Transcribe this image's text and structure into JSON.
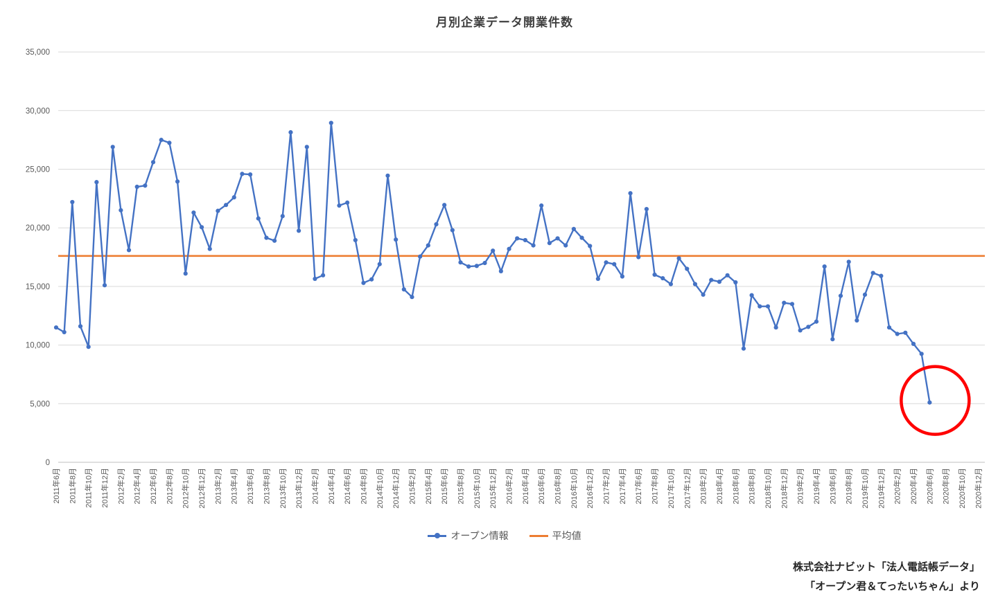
{
  "chart": {
    "title": "月別企業データ開業件数",
    "legend_items": [
      {
        "label": "オープン情報",
        "color": "#4472C4",
        "style": "line-marker"
      },
      {
        "label": "平均値",
        "color": "#ED7D31",
        "style": "line"
      }
    ],
    "source_lines": [
      "株式会社ナビット「法人電話帳データ」",
      "「オープン君＆てったいちゃん」より"
    ],
    "colors": {
      "series": "#4472C4",
      "average": "#ED7D31",
      "grid": "#D9D9D9",
      "axis": "#BFBFBF",
      "tick_text": "#595959",
      "annotation": "#FF0000"
    }
  },
  "chart_data": {
    "type": "line",
    "title": "月別企業データ開業件数",
    "grid": "horizontal",
    "legend_position": "bottom",
    "ylim": [
      0,
      35000
    ],
    "ytick_step": 5000,
    "x_tick_every": 2,
    "x_axis_extends_to": "2020年12月",
    "x_tick_labels": [
      "2011年6月",
      "2011年8月",
      "2011年10月",
      "2011年12月",
      "2012年2月",
      "2012年4月",
      "2012年6月",
      "2012年8月",
      "2012年10月",
      "2012年12月",
      "2013年2月",
      "2013年4月",
      "2013年6月",
      "2013年8月",
      "2013年10月",
      "2013年12月",
      "2014年2月",
      "2014年4月",
      "2014年6月",
      "2014年8月",
      "2014年10月",
      "2014年12月",
      "2015年2月",
      "2015年4月",
      "2015年6月",
      "2015年8月",
      "2015年10月",
      "2015年12月",
      "2016年2月",
      "2016年4月",
      "2016年6月",
      "2016年8月",
      "2016年10月",
      "2016年12月",
      "2017年2月",
      "2017年4月",
      "2017年6月",
      "2017年8月",
      "2017年10月",
      "2017年12月",
      "2018年2月",
      "2018年4月",
      "2018年6月",
      "2018年8月",
      "2018年10月",
      "2018年12月",
      "2019年2月",
      "2019年4月",
      "2019年6月",
      "2019年8月",
      "2019年10月",
      "2019年12月",
      "2020年2月",
      "2020年4月",
      "2020年6月",
      "2020年8月",
      "2020年10月",
      "2020年12月"
    ],
    "x": [
      "2011年6月",
      "2011年7月",
      "2011年8月",
      "2011年9月",
      "2011年10月",
      "2011年11月",
      "2011年12月",
      "2012年1月",
      "2012年2月",
      "2012年3月",
      "2012年4月",
      "2012年5月",
      "2012年6月",
      "2012年7月",
      "2012年8月",
      "2012年9月",
      "2012年10月",
      "2012年11月",
      "2012年12月",
      "2013年1月",
      "2013年2月",
      "2013年3月",
      "2013年4月",
      "2013年5月",
      "2013年6月",
      "2013年7月",
      "2013年8月",
      "2013年9月",
      "2013年10月",
      "2013年11月",
      "2013年12月",
      "2014年1月",
      "2014年2月",
      "2014年3月",
      "2014年4月",
      "2014年5月",
      "2014年6月",
      "2014年7月",
      "2014年8月",
      "2014年9月",
      "2014年10月",
      "2014年11月",
      "2014年12月",
      "2015年1月",
      "2015年2月",
      "2015年3月",
      "2015年4月",
      "2015年5月",
      "2015年6月",
      "2015年7月",
      "2015年8月",
      "2015年9月",
      "2015年10月",
      "2015年11月",
      "2015年12月",
      "2016年1月",
      "2016年2月",
      "2016年3月",
      "2016年4月",
      "2016年5月",
      "2016年6月",
      "2016年7月",
      "2016年8月",
      "2016年9月",
      "2016年10月",
      "2016年11月",
      "2016年12月",
      "2017年1月",
      "2017年2月",
      "2017年3月",
      "2017年4月",
      "2017年5月",
      "2017年6月",
      "2017年7月",
      "2017年8月",
      "2017年9月",
      "2017年10月",
      "2017年11月",
      "2017年12月",
      "2018年1月",
      "2018年2月",
      "2018年3月",
      "2018年4月",
      "2018年5月",
      "2018年6月",
      "2018年7月",
      "2018年8月",
      "2018年9月",
      "2018年10月",
      "2018年11月",
      "2018年12月",
      "2019年1月",
      "2019年2月",
      "2019年3月",
      "2019年4月",
      "2019年5月",
      "2019年6月",
      "2019年7月",
      "2019年8月",
      "2019年9月",
      "2019年10月",
      "2019年11月",
      "2019年12月",
      "2020年1月",
      "2020年2月",
      "2020年3月",
      "2020年4月",
      "2020年5月",
      "2020年6月"
    ],
    "series": [
      {
        "name": "オープン情報",
        "values": [
          11500,
          11100,
          22200,
          11600,
          9850,
          23900,
          15100,
          26900,
          21500,
          18100,
          23500,
          23600,
          25600,
          27500,
          27250,
          23950,
          16100,
          21300,
          20050,
          18200,
          21450,
          21950,
          22600,
          24600,
          24550,
          20800,
          19150,
          18900,
          21000,
          28150,
          19750,
          26900,
          15650,
          15950,
          28950,
          21900,
          22150,
          18950,
          15300,
          15600,
          16900,
          24450,
          19000,
          14750,
          14100,
          17550,
          18500,
          20300,
          21950,
          19800,
          17050,
          16700,
          16750,
          17000,
          18050,
          16300,
          18200,
          19100,
          18950,
          18500,
          21900,
          18700,
          19100,
          18500,
          19900,
          19150,
          18450,
          15650,
          17050,
          16900,
          15850,
          22950,
          17500,
          21600,
          16000,
          15700,
          15200,
          17400,
          16500,
          15200,
          14300,
          15550,
          15400,
          15950,
          15350,
          9700,
          14250,
          13300,
          13300,
          11500,
          13600,
          13500,
          11250,
          11550,
          12000,
          16700,
          10500,
          14200,
          17100,
          12100,
          14300,
          16150,
          15900,
          11500,
          10950,
          11050,
          10100,
          9250,
          5100
        ]
      },
      {
        "name": "平均値",
        "type": "constant-line",
        "value": 17600
      }
    ],
    "annotation": {
      "type": "circle",
      "color": "#FF0000",
      "around": "last-point",
      "note": "2020年6月の急落点を赤丸で強調"
    }
  }
}
